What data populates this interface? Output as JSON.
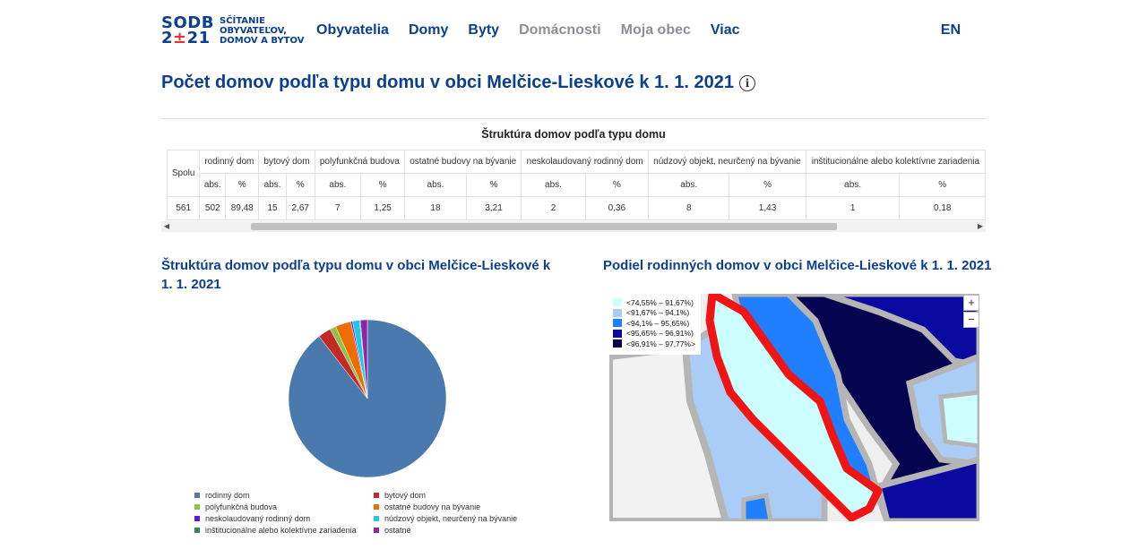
{
  "header": {
    "logo_line1": "SODB",
    "logo_line2a": "2",
    "logo_line2b": "±",
    "logo_line2c": "21",
    "logo_text": [
      "SČÍTANIE",
      "OBYVATEĽOV,",
      "DOMOV A BYTOV"
    ],
    "nav": [
      {
        "label": "Obyvatelia",
        "muted": false
      },
      {
        "label": "Domy",
        "muted": false
      },
      {
        "label": "Byty",
        "muted": false
      },
      {
        "label": "Domácnosti",
        "muted": true
      },
      {
        "label": "Moja obec",
        "muted": true
      },
      {
        "label": "Viac",
        "muted": false
      }
    ],
    "lang": "EN"
  },
  "page_title": "Počet domov podľa typu domu v obci Melčice-Lieskové k 1. 1. 2021",
  "table": {
    "caption": "Štruktúra domov podľa typu domu",
    "spolu_label": "Spolu",
    "total": "561",
    "sub_abs": "abs.",
    "sub_pct": "%",
    "groups": [
      {
        "label": "rodinný dom",
        "abs": "502",
        "pct": "89,48"
      },
      {
        "label": "bytový dom",
        "abs": "15",
        "pct": "2,67"
      },
      {
        "label": "polyfunkčná budova",
        "abs": "7",
        "pct": "1,25"
      },
      {
        "label": "ostatné budovy na bývanie",
        "abs": "18",
        "pct": "3,21"
      },
      {
        "label": "neskolaudovaný rodinný dom",
        "abs": "2",
        "pct": "0,36"
      },
      {
        "label": "núdzový objekt, neurčený na bývanie",
        "abs": "8",
        "pct": "1,43"
      },
      {
        "label": "inštitucionálne alebo kolektívne zariadenia",
        "abs": "1",
        "pct": "0,18"
      }
    ]
  },
  "pie": {
    "title": "Štruktúra domov podľa typu domu v obci Melčice-Lieskové k 1. 1. 2021",
    "chart_data": {
      "type": "pie",
      "categories": [
        "rodinný dom",
        "bytový dom",
        "polyfunkčná budova",
        "ostatné budovy na bývanie",
        "neskolaudovaný rodinný dom",
        "núdzový objekt, neurčený na bývanie",
        "inštitucionálne alebo kolektívne zariadenia",
        "ostatné"
      ],
      "values": [
        502,
        15,
        7,
        18,
        2,
        8,
        1,
        8
      ],
      "colors": [
        "#4a79ad",
        "#c62828",
        "#8bc34a",
        "#ef6c00",
        "#5e17eb",
        "#1ec8e8",
        "#2e8b57",
        "#8e24aa"
      ],
      "legend": "bottom"
    }
  },
  "map": {
    "title": "Podiel rodinných domov v obci Melčice-Lieskové k 1. 1. 2021",
    "legend": [
      {
        "label": "<74,55% – 91,67%)",
        "color": "#ccffff"
      },
      {
        "label": "<91,67% – 94,1%)",
        "color": "#a9cdf7"
      },
      {
        "label": "<94,1% – 95,65%)",
        "color": "#1f7fff"
      },
      {
        "label": "<95,65% – 96,91%)",
        "color": "#0a0aa0"
      },
      {
        "label": "<96,91% – 97,77%>",
        "color": "#05054f"
      }
    ],
    "zoom_in": "+",
    "zoom_out": "−"
  }
}
